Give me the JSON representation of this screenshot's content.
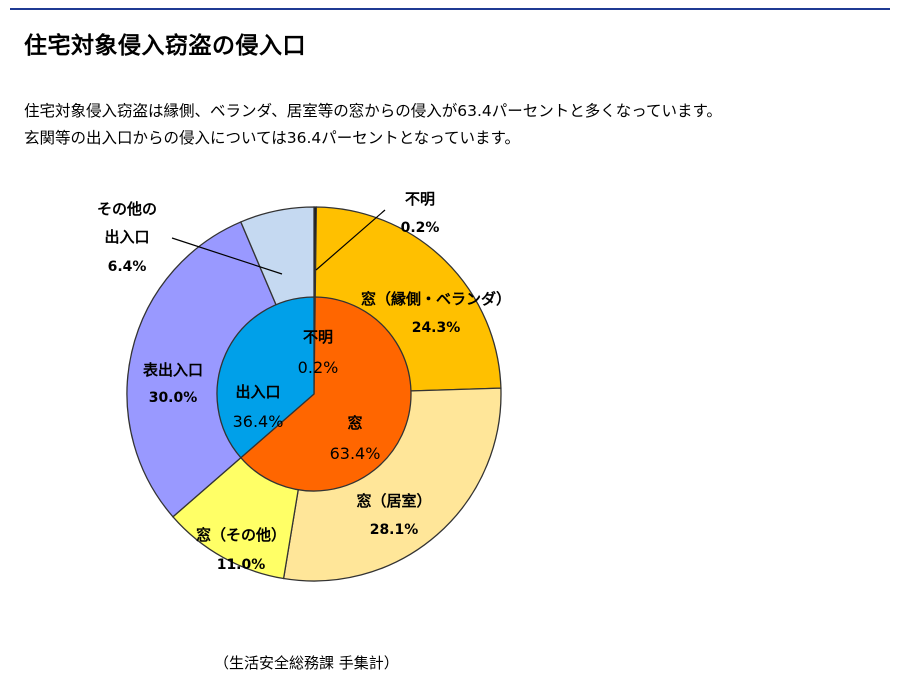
{
  "page": {
    "title": "住宅対象侵入窃盗の侵入口",
    "description_lines": [
      "住宅対象侵入窃盗は縁側、ベランダ、居室等の窓からの侵入が63.4パーセントと多くなっています。",
      "玄関等の出入口からの侵入については36.4パーセントとなっています。"
    ],
    "source": "（生活安全総務課 手集計）"
  },
  "colors": {
    "rule": "#1f3a93",
    "stroke": "#333333"
  },
  "chart_data": {
    "type": "pie",
    "subtype": "nested-donut",
    "inner_ring": [
      {
        "name": "不明",
        "value": 0.2,
        "value_label": "0.2%",
        "color": "#0a0a0a"
      },
      {
        "name": "窓",
        "value": 63.4,
        "value_label": "63.4%",
        "color": "#ff6600"
      },
      {
        "name": "出入口",
        "value": 36.4,
        "value_label": "36.4%",
        "color": "#00a0e9"
      }
    ],
    "outer_ring": [
      {
        "name": "不明",
        "value": 0.2,
        "value_label": "0.2%",
        "color": "#111111"
      },
      {
        "name": "窓（縁側・ベランダ）",
        "value": 24.3,
        "value_label": "24.3%",
        "color": "#ffc000"
      },
      {
        "name": "窓（居室）",
        "value": 28.1,
        "value_label": "28.1%",
        "color": "#ffe699"
      },
      {
        "name": "窓（その他）",
        "value": 11.0,
        "value_label": "11.0%",
        "color": "#ffff66"
      },
      {
        "name": "表出入口",
        "value": 30.0,
        "value_label": "30.0%",
        "color": "#9999ff"
      },
      {
        "name": "その他の出入口",
        "name_lines": [
          "その他の",
          "出入口"
        ],
        "value": 6.4,
        "value_label": "6.4%",
        "color": "#c5d9f1"
      }
    ]
  }
}
